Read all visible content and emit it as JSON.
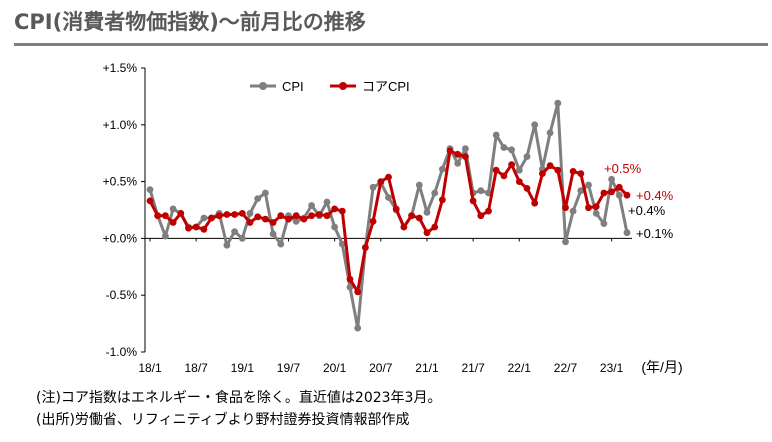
{
  "title": "CPI(消費者物価指数)～前月比の推移",
  "notes": {
    "note1": "(注)コア指数はエネルギー・食品を除く。直近値は2023年3月。",
    "note2": "(出所)労働省、リフィニティブより野村證券投資情報部作成"
  },
  "chart_data": {
    "type": "line",
    "x_unit_label": "(年/月)",
    "x_tick_labels": [
      "18/1",
      "18/7",
      "19/1",
      "19/7",
      "20/1",
      "20/7",
      "21/1",
      "21/7",
      "22/1",
      "22/7",
      "23/1"
    ],
    "y_tick_labels": [
      "+1.5%",
      "+1.0%",
      "+0.5%",
      "+0.0%",
      "-0.5%",
      "-1.0%"
    ],
    "ylim": [
      -1.0,
      1.5
    ],
    "y_ticks": [
      1.5,
      1.0,
      0.5,
      0.0,
      -0.5,
      -1.0
    ],
    "legend": "top-left",
    "x_start": "2018/1",
    "series": [
      {
        "name": "CPI",
        "color": "#7f7f7f",
        "values": [
          0.43,
          0.2,
          0.02,
          0.26,
          0.22,
          0.1,
          0.1,
          0.18,
          0.18,
          0.22,
          -0.06,
          0.06,
          0.0,
          0.22,
          0.35,
          0.4,
          0.04,
          -0.05,
          0.2,
          0.15,
          0.18,
          0.29,
          0.2,
          0.32,
          0.1,
          -0.05,
          -0.43,
          -0.79,
          -0.08,
          0.45,
          0.49,
          0.36,
          0.25,
          0.1,
          0.2,
          0.47,
          0.23,
          0.4,
          0.61,
          0.79,
          0.66,
          0.79,
          0.4,
          0.42,
          0.4,
          0.91,
          0.8,
          0.78,
          0.6,
          0.72,
          1.0,
          0.61,
          0.93,
          1.19,
          -0.03,
          0.24,
          0.42,
          0.47,
          0.22,
          0.13,
          0.52,
          0.38,
          0.05
        ],
        "end_label": "+0.1%"
      },
      {
        "name": "コアCPI",
        "color": "#c00000",
        "values": [
          0.33,
          0.2,
          0.2,
          0.14,
          0.22,
          0.09,
          0.1,
          0.08,
          0.18,
          0.2,
          0.21,
          0.21,
          0.22,
          0.14,
          0.19,
          0.17,
          0.14,
          0.2,
          0.17,
          0.2,
          0.17,
          0.2,
          0.21,
          0.2,
          0.26,
          0.24,
          -0.36,
          -0.47,
          -0.08,
          0.15,
          0.5,
          0.54,
          0.26,
          0.1,
          0.2,
          0.18,
          0.05,
          0.1,
          0.34,
          0.77,
          0.74,
          0.72,
          0.33,
          0.2,
          0.24,
          0.6,
          0.55,
          0.65,
          0.5,
          0.44,
          0.31,
          0.57,
          0.64,
          0.6,
          0.27,
          0.59,
          0.57,
          0.27,
          0.28,
          0.4,
          0.41,
          0.45,
          0.38
        ],
        "end_label": "+0.4%"
      }
    ],
    "annotations": [
      "+0.5%",
      "+0.4%"
    ]
  }
}
